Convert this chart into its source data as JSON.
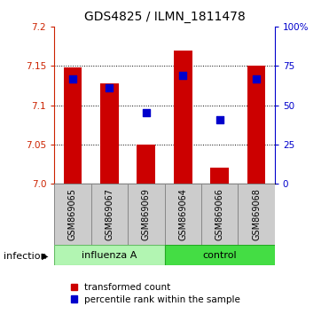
{
  "title": "GDS4825 / ILMN_1811478",
  "samples": [
    "GSM869065",
    "GSM869067",
    "GSM869069",
    "GSM869064",
    "GSM869066",
    "GSM869068"
  ],
  "ylim": [
    7.0,
    7.2
  ],
  "yticks": [
    7.0,
    7.05,
    7.1,
    7.15,
    7.2
  ],
  "right_yticks": [
    0,
    25,
    50,
    75,
    100
  ],
  "red_values": [
    7.148,
    7.128,
    7.05,
    7.17,
    7.02,
    7.15
  ],
  "blue_values": [
    7.133,
    7.122,
    7.09,
    7.138,
    7.082,
    7.133
  ],
  "bar_color": "#cc0000",
  "dot_color": "#0000cc",
  "bar_width": 0.5,
  "dot_size": 28,
  "background_color": "#ffffff",
  "title_fontsize": 10,
  "tick_fontsize": 7.5,
  "sample_fontsize": 7,
  "group_fontsize": 8,
  "legend_fontsize": 7.5,
  "influenza_color": "#b2f5b2",
  "control_color": "#44dd44",
  "sample_box_color": "#cccccc",
  "infection_label": "infection"
}
